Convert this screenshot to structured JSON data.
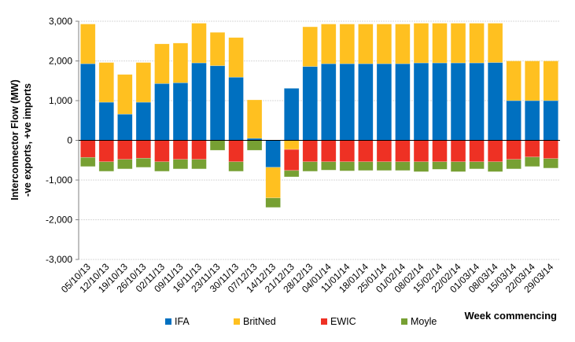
{
  "chart_data": {
    "type": "bar",
    "stacked": true,
    "title": "",
    "xlabel": "Week commencing",
    "ylabel_line1": "Interconnector Flow (MW)",
    "ylabel_line2": "-ve exports, +ve imports",
    "ylim": [
      -3000,
      3000
    ],
    "yticks": [
      3000,
      2000,
      1000,
      0,
      -1000,
      -2000,
      -3000
    ],
    "ytick_labels": [
      "3,000",
      "2,000",
      "1,000",
      "0",
      "-1,000",
      "-2,000",
      "-3,000"
    ],
    "grid": true,
    "legend_position": "bottom",
    "categories": [
      "05/10/13",
      "12/10/13",
      "19/10/13",
      "26/10/13",
      "02/11/13",
      "09/11/13",
      "16/11/13",
      "23/11/13",
      "30/11/13",
      "07/12/13",
      "14/12/13",
      "21/12/13",
      "28/12/13",
      "04/01/14",
      "11/01/14",
      "18/01/14",
      "25/01/14",
      "01/02/14",
      "08/02/14",
      "15/02/14",
      "22/02/14",
      "01/03/14",
      "08/03/14",
      "15/03/14",
      "22/03/14",
      "29/03/14"
    ],
    "series": [
      {
        "name": "IFA",
        "color": "#0070C0",
        "values": [
          1930,
          960,
          660,
          960,
          1430,
          1450,
          1950,
          1880,
          1590,
          50,
          -680,
          1310,
          1860,
          1930,
          1930,
          1930,
          1930,
          1930,
          1950,
          1950,
          1950,
          1950,
          1960,
          1000,
          1000,
          1000
        ]
      },
      {
        "name": "BritNed",
        "color": "#FFC020",
        "values": [
          1000,
          1000,
          1000,
          1000,
          1000,
          1000,
          1000,
          840,
          1000,
          970,
          -770,
          -230,
          1000,
          1000,
          1000,
          1000,
          1000,
          1000,
          1000,
          1000,
          1000,
          1000,
          990,
          1000,
          1000,
          1000
        ]
      },
      {
        "name": "EWIC",
        "color": "#EE3124",
        "values": [
          -430,
          -540,
          -480,
          -450,
          -540,
          -480,
          -480,
          0,
          -540,
          0,
          0,
          -530,
          -540,
          -540,
          -540,
          -540,
          -540,
          -540,
          -540,
          -540,
          -540,
          -540,
          -540,
          -480,
          -420,
          -460
        ]
      },
      {
        "name": "Moyle",
        "color": "#77A033",
        "values": [
          -230,
          -240,
          -240,
          -230,
          -240,
          -240,
          -240,
          -250,
          -240,
          -250,
          -240,
          -160,
          -240,
          -210,
          -230,
          -220,
          -220,
          -220,
          -250,
          -190,
          -250,
          -180,
          -250,
          -240,
          -240,
          -240
        ]
      }
    ]
  }
}
